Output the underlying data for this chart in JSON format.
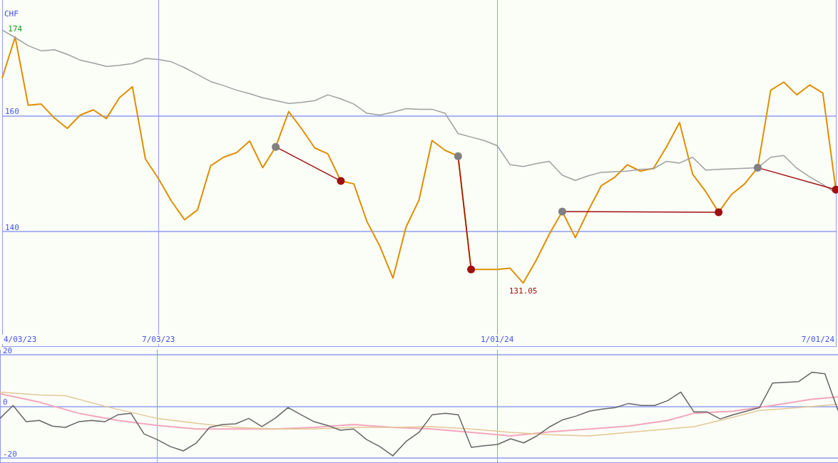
{
  "chart_data": [
    {
      "type": "line",
      "ylabel": "CHF",
      "x": [
        "2023-04-10",
        "2023-04-17",
        "2023-04-24",
        "2023-05-01",
        "2023-05-08",
        "2023-05-15",
        "2023-05-22",
        "2023-05-29",
        "2023-06-05",
        "2023-06-12",
        "2023-06-19",
        "2023-06-26",
        "2023-07-03",
        "2023-07-10",
        "2023-07-17",
        "2023-07-24",
        "2023-07-31",
        "2023-08-07",
        "2023-08-14",
        "2023-08-21",
        "2023-08-28",
        "2023-09-04",
        "2023-09-11",
        "2023-09-18",
        "2023-09-25",
        "2023-10-02",
        "2023-10-09",
        "2023-10-16",
        "2023-10-23",
        "2023-10-30",
        "2023-11-06",
        "2023-11-13",
        "2023-11-20",
        "2023-11-27",
        "2023-12-04",
        "2023-12-11",
        "2023-12-18",
        "2023-12-25",
        "2024-01-01",
        "2024-01-08",
        "2024-01-15",
        "2024-01-22",
        "2024-01-29",
        "2024-02-05",
        "2024-02-12",
        "2024-02-19",
        "2024-02-26",
        "2024-03-04",
        "2024-03-11",
        "2024-03-18",
        "2024-03-25",
        "2024-04-01",
        "2024-04-08",
        "2024-04-15",
        "2024-04-22",
        "2024-04-29",
        "2024-05-06",
        "2024-05-13",
        "2024-05-20",
        "2024-05-27",
        "2024-06-03",
        "2024-06-10",
        "2024-06-17",
        "2024-06-24",
        "2024-07-01"
      ],
      "series": [
        {
          "color": "#dd9000",
          "values": [
            166.5,
            173.6,
            161.8,
            162.0,
            159.6,
            157.8,
            160.1,
            161.0,
            159.5,
            163.1,
            165.0,
            152.5,
            149.1,
            145.2,
            142.0,
            143.7,
            151.3,
            152.8,
            153.6,
            155.6,
            151.0,
            154.6,
            160.7,
            157.7,
            154.4,
            153.4,
            148.7,
            148.2,
            141.7,
            137.4,
            131.9,
            140.7,
            145.4,
            155.7,
            154.0,
            153.0,
            133.4,
            133.4,
            133.4,
            133.6,
            131.05,
            135.0,
            139.5,
            143.4,
            138.9,
            143.6,
            147.9,
            149.3,
            151.5,
            150.4,
            150.9,
            154.6,
            158.8,
            149.9,
            146.9,
            143.3,
            146.4,
            148.2,
            151.0,
            164.4,
            165.8,
            163.6,
            165.3,
            163.9,
            147.2
          ]
        },
        {
          "color": "#a0a0a0",
          "values": [
            174.8,
            173.5,
            172.1,
            171.2,
            171.4,
            170.6,
            169.6,
            169.1,
            168.5,
            168.7,
            169.0,
            169.9,
            169.7,
            169.3,
            168.3,
            167.1,
            165.9,
            165.2,
            164.4,
            163.8,
            163.1,
            162.6,
            162.1,
            162.3,
            162.6,
            163.6,
            162.9,
            162.0,
            160.4,
            160.1,
            160.6,
            161.2,
            161.1,
            161.1,
            160.4,
            156.9,
            156.3,
            155.7,
            154.8,
            151.5,
            151.2,
            151.7,
            152.1,
            149.7,
            148.8,
            149.6,
            150.2,
            150.3,
            150.4,
            150.7,
            150.8,
            152.1,
            151.8,
            152.8,
            150.6,
            150.7,
            150.8,
            150.9,
            151.0,
            152.8,
            153.1,
            150.9,
            149.4,
            148.1,
            146.6
          ]
        },
        {
          "color": "#a01010",
          "marker": "circle",
          "x": [
            "2023-09-04",
            "2023-10-09"
          ],
          "values": [
            154.6,
            148.7
          ],
          "colors": [
            "#808080",
            "#a01010"
          ]
        },
        {
          "color": "#a01010",
          "marker": "circle",
          "x": [
            "2023-12-11",
            "2023-12-18"
          ],
          "values": [
            153.0,
            133.4
          ],
          "colors": [
            "#808080",
            "#a01010"
          ]
        },
        {
          "color": "#a01010",
          "marker": "circle",
          "x": [
            "2024-02-05",
            "2024-04-29"
          ],
          "values": [
            143.4,
            143.3
          ],
          "colors": [
            "#808080",
            "#a01010"
          ]
        },
        {
          "color": "#a01010",
          "marker": "circle",
          "x": [
            "2024-05-20",
            "2024-07-01"
          ],
          "values": [
            151.0,
            147.2
          ],
          "colors": [
            "#808080",
            "#a01010"
          ]
        }
      ],
      "annotations": [
        {
          "text": "174",
          "x": "2023-04-17",
          "y": 173.6
        },
        {
          "text": "131.05",
          "x": "2024-01-15",
          "y": 131.05
        }
      ],
      "xlim": [
        "2023-04-10",
        "2024-07-01"
      ],
      "xticks": [
        {
          "value": "2023-04-10",
          "label": "4/03/23"
        },
        {
          "value": "2023-07-03",
          "label": "7/03/23"
        },
        {
          "value": "2024-01-01",
          "label": "1/01/24"
        },
        {
          "value": "2024-07-01",
          "label": "7/01/24"
        }
      ],
      "ylim": [
        120,
        180
      ],
      "yticks": [
        140,
        160
      ],
      "grid": true,
      "marker": "none"
    },
    {
      "type": "line",
      "x": [
        "2023-04-10",
        "2023-04-17",
        "2023-04-24",
        "2023-05-01",
        "2023-05-08",
        "2023-05-15",
        "2023-05-22",
        "2023-05-29",
        "2023-06-05",
        "2023-06-12",
        "2023-06-19",
        "2023-06-26",
        "2023-07-03",
        "2023-07-10",
        "2023-07-17",
        "2023-07-24",
        "2023-07-31",
        "2023-08-07",
        "2023-08-14",
        "2023-08-21",
        "2023-08-28",
        "2023-09-04",
        "2023-09-11",
        "2023-09-18",
        "2023-09-25",
        "2023-10-02",
        "2023-10-09",
        "2023-10-16",
        "2023-10-23",
        "2023-10-30",
        "2023-11-06",
        "2023-11-13",
        "2023-11-20",
        "2023-11-27",
        "2023-12-04",
        "2023-12-11",
        "2023-12-18",
        "2023-12-25",
        "2024-01-01",
        "2024-01-08",
        "2024-01-15",
        "2024-01-22",
        "2024-01-29",
        "2024-02-05",
        "2024-02-12",
        "2024-02-19",
        "2024-02-26",
        "2024-03-04",
        "2024-03-11",
        "2024-03-18",
        "2024-03-25",
        "2024-04-01",
        "2024-04-08",
        "2024-04-15",
        "2024-04-22",
        "2024-04-29",
        "2024-05-06",
        "2024-05-13",
        "2024-05-20",
        "2024-05-27",
        "2024-06-03",
        "2024-06-10",
        "2024-06-17",
        "2024-06-24",
        "2024-07-01"
      ],
      "series": [
        {
          "color": "#f4a6bd",
          "x": [
            "2023-04-10",
            "2023-05-01",
            "2023-05-22",
            "2023-06-12",
            "2023-07-03",
            "2023-07-24",
            "2023-08-14",
            "2023-09-04",
            "2023-09-25",
            "2023-10-16",
            "2023-11-06",
            "2023-11-27",
            "2023-12-18",
            "2024-01-08",
            "2024-01-29",
            "2024-02-19",
            "2024-03-11",
            "2024-04-01",
            "2024-04-15",
            "2024-05-06",
            "2024-05-27",
            "2024-06-17",
            "2024-07-01"
          ],
          "values": [
            4.9,
            1.6,
            -2.7,
            -5.5,
            -7.4,
            -8.8,
            -8.8,
            -8.8,
            -8.2,
            -7.1,
            -8.2,
            -8.8,
            -10.1,
            -11.5,
            -9.9,
            -8.8,
            -7.7,
            -5.5,
            -2.7,
            -1.9,
            0.3,
            2.7,
            3.6
          ]
        },
        {
          "color": "#e2c896",
          "x": [
            "2023-04-10",
            "2023-05-01",
            "2023-05-15",
            "2023-06-05",
            "2023-07-03",
            "2023-07-24",
            "2023-08-14",
            "2023-09-04",
            "2023-09-25",
            "2023-10-16",
            "2023-11-06",
            "2023-11-27",
            "2023-12-18",
            "2024-01-08",
            "2024-01-29",
            "2024-02-19",
            "2024-03-11",
            "2024-04-01",
            "2024-04-15",
            "2024-04-29",
            "2024-05-20",
            "2024-06-10",
            "2024-07-01"
          ],
          "values": [
            5.5,
            4.4,
            4.1,
            0,
            -4.7,
            -6.6,
            -8.2,
            -8.8,
            -8.8,
            -8.2,
            -8.2,
            -7.9,
            -8.8,
            -10.1,
            -11.0,
            -11.5,
            -10.1,
            -8.8,
            -7.9,
            -5.5,
            -1.6,
            -0.5,
            0.8
          ]
        },
        {
          "color": "#666666",
          "values": [
            -4.7,
            0.3,
            -6.0,
            -5.5,
            -7.7,
            -8.2,
            -6.0,
            -5.5,
            -6.0,
            -3.3,
            -2.7,
            -10.7,
            -12.9,
            -15.6,
            -17.3,
            -14.2,
            -8.2,
            -7.1,
            -6.8,
            -4.7,
            -7.9,
            -4.7,
            -0.5,
            -3.3,
            -6.0,
            -7.4,
            -9.3,
            -8.8,
            -12.9,
            -15.6,
            -19.2,
            -13.7,
            -10.1,
            -3.3,
            -2.7,
            -3.3,
            -15.9,
            -15.3,
            -14.8,
            -12.6,
            -14.2,
            -11.5,
            -7.9,
            -5.2,
            -3.8,
            -1.9,
            -1.1,
            -0.5,
            1.1,
            0.3,
            0.3,
            2.2,
            5.5,
            -2.2,
            -2.2,
            -4.9,
            -3.3,
            -1.9,
            -0.5,
            9.0,
            9.3,
            9.6,
            13.2,
            12.6,
            -1.6
          ]
        }
      ],
      "xlim": [
        "2023-04-10",
        "2024-07-01"
      ],
      "xticks": [
        {
          "value": "2023-04-10",
          "label": null
        },
        {
          "value": "2023-07-03",
          "label": null
        },
        {
          "value": "2024-01-01",
          "label": null
        },
        {
          "value": "2024-07-01",
          "label": null
        }
      ],
      "ylim": [
        -22,
        22
      ],
      "yticks": [
        -20,
        0,
        20
      ],
      "grid": true,
      "marker": "none",
      "tick_labels": "y"
    }
  ]
}
